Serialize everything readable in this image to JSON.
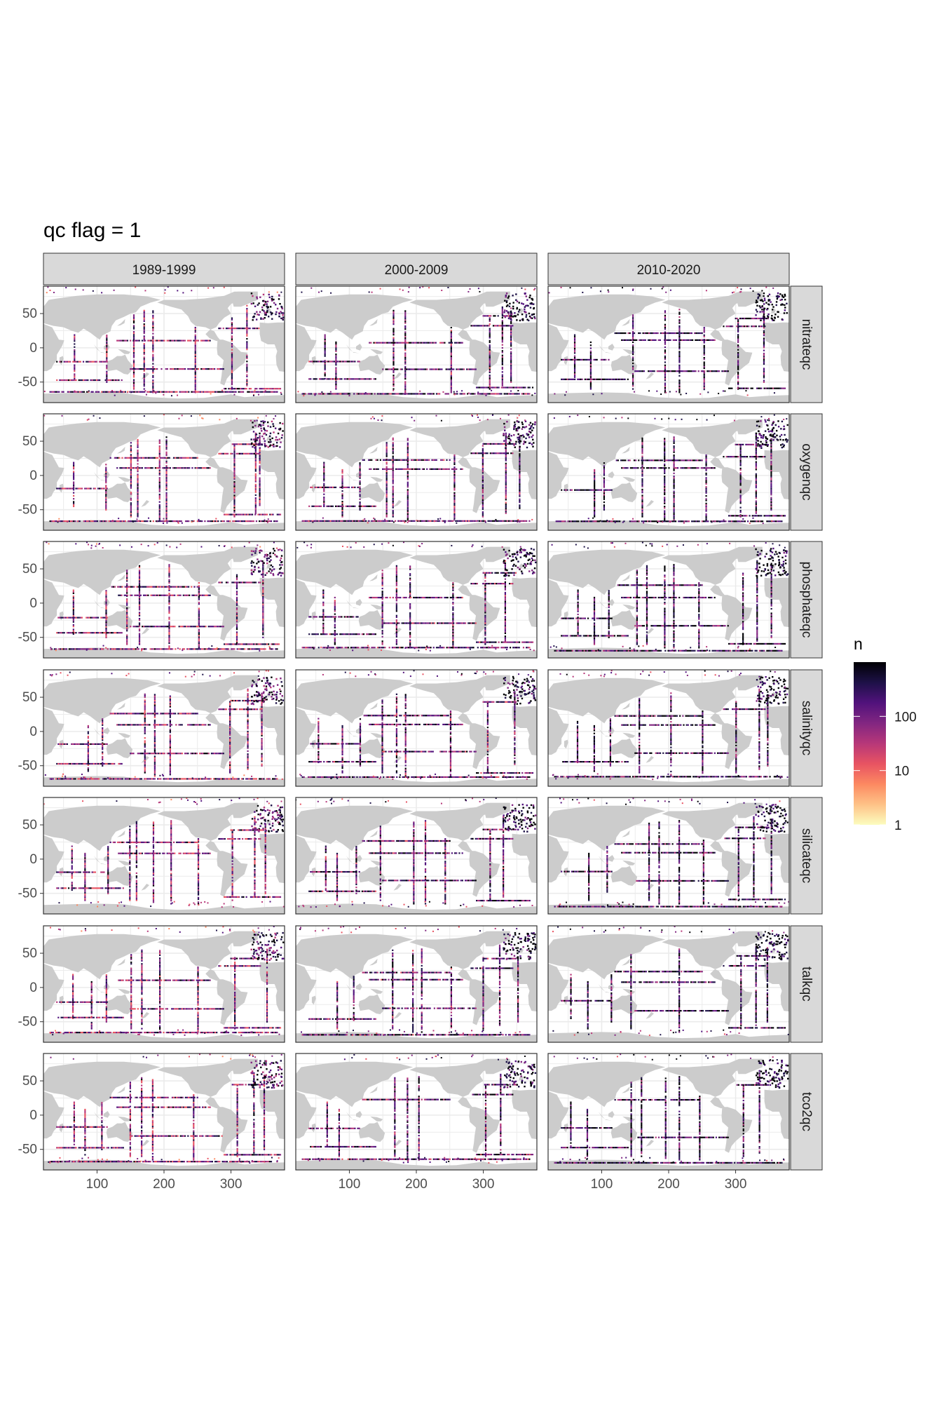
{
  "title": "qc flag = 1",
  "chart_data": {
    "type": "heatmap",
    "title": "qc flag = 1",
    "description_kind": "faceted world maps of observation counts",
    "xlabel": "",
    "ylabel": "",
    "x_ticks": [
      100,
      200,
      300
    ],
    "y_ticks": [
      50,
      0,
      -50
    ],
    "xlim": [
      20,
      380
    ],
    "ylim": [
      -80,
      90
    ],
    "column_facets": [
      "1989-1999",
      "2000-2009",
      "2010-2020"
    ],
    "row_facets": [
      "nitrateqc",
      "oxygenqc",
      "phosphateqc",
      "salinityqc",
      "silicateqc",
      "talkqc",
      "tco2qc"
    ],
    "legend": {
      "title": "n",
      "scale": "log10",
      "breaks": [
        1,
        10,
        100
      ],
      "labels": [
        "1",
        "10",
        "100"
      ],
      "range": [
        1,
        1000
      ],
      "colormap": "magma (reversed)",
      "colors": [
        "#fcfdbf",
        "#fec287",
        "#fc8961",
        "#e85362",
        "#b73779",
        "#822681",
        "#51127c",
        "#1d1147",
        "#000004"
      ]
    },
    "grid": true,
    "land_color": "#cccccc",
    "panel_background": "#ffffff",
    "gridline_color": "#ebebeb",
    "strip_fill": "#d9d9d9"
  }
}
